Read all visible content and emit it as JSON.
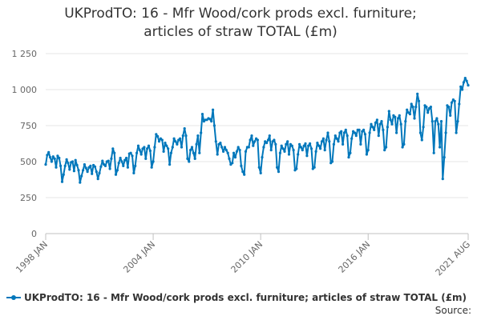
{
  "chart_data": {
    "type": "line",
    "title": "UKProdTO: 16 - Mfr Wood/cork prods excl. furniture; articles of straw TOTAL (£m)",
    "title_lines": [
      "UKProdTO: 16 - Mfr Wood/cork prods excl. furniture;",
      "articles of straw TOTAL (£m)"
    ],
    "xlabel": "",
    "ylabel": "",
    "x_range": [
      "1998-01",
      "2021-08"
    ],
    "ylim": [
      0,
      1250
    ],
    "y_ticks": [
      {
        "value": 0,
        "label": "0"
      },
      {
        "value": 250,
        "label": "250"
      },
      {
        "value": 500,
        "label": "500"
      },
      {
        "value": 750,
        "label": "750"
      },
      {
        "value": 1000,
        "label": "1 000"
      },
      {
        "value": 1250,
        "label": "1 250"
      }
    ],
    "x_ticks": [
      {
        "date": "1998-01",
        "label": "1998 JAN"
      },
      {
        "date": "2004-01",
        "label": "2004 JAN"
      },
      {
        "date": "2010-01",
        "label": "2010 JAN"
      },
      {
        "date": "2016-01",
        "label": "2016 JAN"
      },
      {
        "date": "2021-08",
        "label": "2021 AUG"
      }
    ],
    "grid": "horizontal",
    "legend_position": "bottom",
    "series": [
      {
        "name": "UKProdTO: 16 - Mfr Wood/cork prods excl. furniture; articles of straw TOTAL (£m)",
        "color": "#0077bb",
        "points": [
          [
            "1998-01",
            480
          ],
          [
            "1998-02",
            545
          ],
          [
            "1998-03",
            565
          ],
          [
            "1998-04",
            530
          ],
          [
            "1998-05",
            500
          ],
          [
            "1998-06",
            535
          ],
          [
            "1998-07",
            520
          ],
          [
            "1998-08",
            460
          ],
          [
            "1998-09",
            540
          ],
          [
            "1998-10",
            525
          ],
          [
            "1998-11",
            470
          ],
          [
            "1998-12",
            360
          ],
          [
            "1999-01",
            410
          ],
          [
            "1999-02",
            470
          ],
          [
            "1999-03",
            515
          ],
          [
            "1999-04",
            490
          ],
          [
            "1999-05",
            445
          ],
          [
            "1999-06",
            495
          ],
          [
            "1999-07",
            500
          ],
          [
            "1999-08",
            435
          ],
          [
            "1999-09",
            510
          ],
          [
            "1999-10",
            475
          ],
          [
            "1999-11",
            440
          ],
          [
            "1999-12",
            355
          ],
          [
            "2000-01",
            400
          ],
          [
            "2000-02",
            440
          ],
          [
            "2000-03",
            480
          ],
          [
            "2000-04",
            455
          ],
          [
            "2000-05",
            430
          ],
          [
            "2000-06",
            460
          ],
          [
            "2000-07",
            470
          ],
          [
            "2000-08",
            415
          ],
          [
            "2000-09",
            475
          ],
          [
            "2000-10",
            465
          ],
          [
            "2000-11",
            430
          ],
          [
            "2000-12",
            380
          ],
          [
            "2001-01",
            420
          ],
          [
            "2001-02",
            465
          ],
          [
            "2001-03",
            505
          ],
          [
            "2001-04",
            480
          ],
          [
            "2001-05",
            470
          ],
          [
            "2001-06",
            500
          ],
          [
            "2001-07",
            505
          ],
          [
            "2001-08",
            450
          ],
          [
            "2001-09",
            520
          ],
          [
            "2001-10",
            590
          ],
          [
            "2001-11",
            560
          ],
          [
            "2001-12",
            410
          ],
          [
            "2002-01",
            440
          ],
          [
            "2002-02",
            490
          ],
          [
            "2002-03",
            525
          ],
          [
            "2002-04",
            500
          ],
          [
            "2002-05",
            470
          ],
          [
            "2002-06",
            510
          ],
          [
            "2002-07",
            525
          ],
          [
            "2002-08",
            460
          ],
          [
            "2002-09",
            555
          ],
          [
            "2002-10",
            560
          ],
          [
            "2002-11",
            540
          ],
          [
            "2002-12",
            420
          ],
          [
            "2003-01",
            470
          ],
          [
            "2003-02",
            560
          ],
          [
            "2003-03",
            610
          ],
          [
            "2003-04",
            580
          ],
          [
            "2003-05",
            550
          ],
          [
            "2003-06",
            590
          ],
          [
            "2003-07",
            600
          ],
          [
            "2003-08",
            520
          ],
          [
            "2003-09",
            590
          ],
          [
            "2003-10",
            610
          ],
          [
            "2003-11",
            575
          ],
          [
            "2003-12",
            460
          ],
          [
            "2004-01",
            500
          ],
          [
            "2004-02",
            600
          ],
          [
            "2004-03",
            690
          ],
          [
            "2004-04",
            675
          ],
          [
            "2004-05",
            640
          ],
          [
            "2004-06",
            660
          ],
          [
            "2004-07",
            650
          ],
          [
            "2004-08",
            570
          ],
          [
            "2004-09",
            630
          ],
          [
            "2004-10",
            610
          ],
          [
            "2004-11",
            590
          ],
          [
            "2004-12",
            480
          ],
          [
            "2005-01",
            560
          ],
          [
            "2005-02",
            600
          ],
          [
            "2005-03",
            660
          ],
          [
            "2005-04",
            640
          ],
          [
            "2005-05",
            620
          ],
          [
            "2005-06",
            650
          ],
          [
            "2005-07",
            660
          ],
          [
            "2005-08",
            600
          ],
          [
            "2005-09",
            680
          ],
          [
            "2005-10",
            730
          ],
          [
            "2005-11",
            680
          ],
          [
            "2005-12",
            520
          ],
          [
            "2006-01",
            500
          ],
          [
            "2006-02",
            580
          ],
          [
            "2006-03",
            600
          ],
          [
            "2006-04",
            560
          ],
          [
            "2006-05",
            520
          ],
          [
            "2006-06",
            620
          ],
          [
            "2006-07",
            680
          ],
          [
            "2006-08",
            560
          ],
          [
            "2006-09",
            700
          ],
          [
            "2006-10",
            830
          ],
          [
            "2006-11",
            780
          ],
          [
            "2006-12",
            790
          ],
          [
            "2007-01",
            790
          ],
          [
            "2007-02",
            800
          ],
          [
            "2007-03",
            795
          ],
          [
            "2007-04",
            780
          ],
          [
            "2007-05",
            860
          ],
          [
            "2007-06",
            750
          ],
          [
            "2007-07",
            640
          ],
          [
            "2007-08",
            550
          ],
          [
            "2007-09",
            620
          ],
          [
            "2007-10",
            630
          ],
          [
            "2007-11",
            600
          ],
          [
            "2007-12",
            570
          ],
          [
            "2008-01",
            600
          ],
          [
            "2008-02",
            580
          ],
          [
            "2008-03",
            560
          ],
          [
            "2008-04",
            520
          ],
          [
            "2008-05",
            480
          ],
          [
            "2008-06",
            490
          ],
          [
            "2008-07",
            560
          ],
          [
            "2008-08",
            530
          ],
          [
            "2008-09",
            570
          ],
          [
            "2008-10",
            600
          ],
          [
            "2008-11",
            580
          ],
          [
            "2008-12",
            470
          ],
          [
            "2009-01",
            430
          ],
          [
            "2009-02",
            410
          ],
          [
            "2009-03",
            570
          ],
          [
            "2009-04",
            600
          ],
          [
            "2009-05",
            600
          ],
          [
            "2009-06",
            650
          ],
          [
            "2009-07",
            680
          ],
          [
            "2009-08",
            610
          ],
          [
            "2009-09",
            640
          ],
          [
            "2009-10",
            660
          ],
          [
            "2009-11",
            650
          ],
          [
            "2009-12",
            460
          ],
          [
            "2010-01",
            420
          ],
          [
            "2010-02",
            530
          ],
          [
            "2010-03",
            600
          ],
          [
            "2010-04",
            640
          ],
          [
            "2010-05",
            630
          ],
          [
            "2010-06",
            650
          ],
          [
            "2010-07",
            680
          ],
          [
            "2010-08",
            580
          ],
          [
            "2010-09",
            640
          ],
          [
            "2010-10",
            650
          ],
          [
            "2010-11",
            620
          ],
          [
            "2010-12",
            460
          ],
          [
            "2011-01",
            430
          ],
          [
            "2011-02",
            560
          ],
          [
            "2011-03",
            610
          ],
          [
            "2011-04",
            590
          ],
          [
            "2011-05",
            570
          ],
          [
            "2011-06",
            620
          ],
          [
            "2011-07",
            640
          ],
          [
            "2011-08",
            550
          ],
          [
            "2011-09",
            620
          ],
          [
            "2011-10",
            610
          ],
          [
            "2011-11",
            580
          ],
          [
            "2011-12",
            440
          ],
          [
            "2012-01",
            450
          ],
          [
            "2012-02",
            550
          ],
          [
            "2012-03",
            620
          ],
          [
            "2012-04",
            600
          ],
          [
            "2012-05",
            580
          ],
          [
            "2012-06",
            610
          ],
          [
            "2012-07",
            625
          ],
          [
            "2012-08",
            540
          ],
          [
            "2012-09",
            610
          ],
          [
            "2012-10",
            625
          ],
          [
            "2012-11",
            590
          ],
          [
            "2012-12",
            450
          ],
          [
            "2013-01",
            460
          ],
          [
            "2013-02",
            570
          ],
          [
            "2013-03",
            630
          ],
          [
            "2013-04",
            610
          ],
          [
            "2013-05",
            590
          ],
          [
            "2013-06",
            640
          ],
          [
            "2013-07",
            660
          ],
          [
            "2013-08",
            580
          ],
          [
            "2013-09",
            650
          ],
          [
            "2013-10",
            700
          ],
          [
            "2013-11",
            640
          ],
          [
            "2013-12",
            490
          ],
          [
            "2014-01",
            500
          ],
          [
            "2014-02",
            620
          ],
          [
            "2014-03",
            680
          ],
          [
            "2014-04",
            660
          ],
          [
            "2014-05",
            640
          ],
          [
            "2014-06",
            700
          ],
          [
            "2014-07",
            710
          ],
          [
            "2014-08",
            620
          ],
          [
            "2014-09",
            700
          ],
          [
            "2014-10",
            720
          ],
          [
            "2014-11",
            680
          ],
          [
            "2014-12",
            530
          ],
          [
            "2015-01",
            560
          ],
          [
            "2015-02",
            660
          ],
          [
            "2015-03",
            710
          ],
          [
            "2015-04",
            700
          ],
          [
            "2015-05",
            680
          ],
          [
            "2015-06",
            720
          ],
          [
            "2015-07",
            720
          ],
          [
            "2015-08",
            620
          ],
          [
            "2015-09",
            710
          ],
          [
            "2015-10",
            720
          ],
          [
            "2015-11",
            690
          ],
          [
            "2015-12",
            550
          ],
          [
            "2016-01",
            580
          ],
          [
            "2016-02",
            700
          ],
          [
            "2016-03",
            760
          ],
          [
            "2016-04",
            740
          ],
          [
            "2016-05",
            720
          ],
          [
            "2016-06",
            770
          ],
          [
            "2016-07",
            790
          ],
          [
            "2016-08",
            680
          ],
          [
            "2016-09",
            760
          ],
          [
            "2016-10",
            780
          ],
          [
            "2016-11",
            720
          ],
          [
            "2016-12",
            580
          ],
          [
            "2017-01",
            600
          ],
          [
            "2017-02",
            740
          ],
          [
            "2017-03",
            850
          ],
          [
            "2017-04",
            790
          ],
          [
            "2017-05",
            760
          ],
          [
            "2017-06",
            820
          ],
          [
            "2017-07",
            810
          ],
          [
            "2017-08",
            700
          ],
          [
            "2017-09",
            800
          ],
          [
            "2017-10",
            820
          ],
          [
            "2017-11",
            760
          ],
          [
            "2017-12",
            600
          ],
          [
            "2018-01",
            620
          ],
          [
            "2018-02",
            780
          ],
          [
            "2018-03",
            860
          ],
          [
            "2018-04",
            840
          ],
          [
            "2018-05",
            830
          ],
          [
            "2018-06",
            900
          ],
          [
            "2018-07",
            880
          ],
          [
            "2018-08",
            800
          ],
          [
            "2018-09",
            880
          ],
          [
            "2018-10",
            970
          ],
          [
            "2018-11",
            920
          ],
          [
            "2018-12",
            700
          ],
          [
            "2019-01",
            650
          ],
          [
            "2019-02",
            740
          ],
          [
            "2019-03",
            890
          ],
          [
            "2019-04",
            880
          ],
          [
            "2019-05",
            840
          ],
          [
            "2019-06",
            870
          ],
          [
            "2019-07",
            880
          ],
          [
            "2019-08",
            780
          ],
          [
            "2019-09",
            560
          ],
          [
            "2019-10",
            780
          ],
          [
            "2019-11",
            800
          ],
          [
            "2019-12",
            760
          ],
          [
            "2020-01",
            600
          ],
          [
            "2020-02",
            780
          ],
          [
            "2020-03",
            380
          ],
          [
            "2020-04",
            530
          ],
          [
            "2020-05",
            700
          ],
          [
            "2020-06",
            890
          ],
          [
            "2020-07",
            880
          ],
          [
            "2020-08",
            820
          ],
          [
            "2020-09",
            910
          ],
          [
            "2020-10",
            930
          ],
          [
            "2020-11",
            920
          ],
          [
            "2020-12",
            700
          ],
          [
            "2021-01",
            780
          ],
          [
            "2021-02",
            900
          ],
          [
            "2021-03",
            1020
          ],
          [
            "2021-04",
            1000
          ],
          [
            "2021-05",
            1050
          ],
          [
            "2021-06",
            1080
          ],
          [
            "2021-07",
            1060
          ],
          [
            "2021-08",
            1030
          ]
        ]
      }
    ]
  },
  "legend": {
    "label": "UKProdTO: 16 - Mfr Wood/cork prods excl. furniture; articles of straw TOTAL (£m)"
  },
  "source_label": "Source:"
}
